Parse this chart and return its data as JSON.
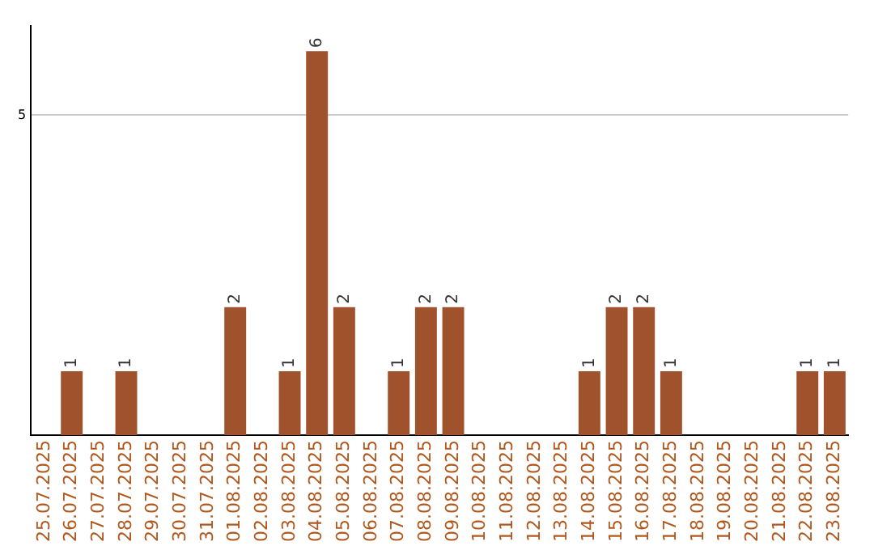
{
  "chart_data": {
    "type": "bar",
    "categories": [
      "25.07.2025",
      "26.07.2025",
      "27.07.2025",
      "28.07.2025",
      "29.07.2025",
      "30.07.2025",
      "31.07.2025",
      "01.08.2025",
      "02.08.2025",
      "03.08.2025",
      "04.08.2025",
      "05.08.2025",
      "06.08.2025",
      "07.08.2025",
      "08.08.2025",
      "09.08.2025",
      "10.08.2025",
      "11.08.2025",
      "12.08.2025",
      "13.08.2025",
      "14.08.2025",
      "15.08.2025",
      "16.08.2025",
      "17.08.2025",
      "18.08.2025",
      "19.08.2025",
      "20.08.2025",
      "21.08.2025",
      "22.08.2025",
      "23.08.2025"
    ],
    "values": [
      0,
      1,
      0,
      1,
      0,
      0,
      0,
      2,
      0,
      1,
      6,
      2,
      0,
      1,
      2,
      2,
      0,
      0,
      0,
      0,
      1,
      2,
      2,
      1,
      0,
      0,
      0,
      0,
      1,
      1
    ],
    "value_labels": [
      null,
      "1",
      null,
      "1",
      null,
      null,
      null,
      "2",
      null,
      "1",
      "6",
      "2",
      null,
      "1",
      "2",
      "2",
      null,
      null,
      null,
      null,
      "1",
      "2",
      "2",
      "1",
      null,
      null,
      null,
      null,
      "1",
      "1"
    ],
    "color": "#a0522d",
    "ylim": [
      0,
      6.4
    ],
    "yticks": [
      5
    ],
    "grid": "y",
    "legend": false
  }
}
